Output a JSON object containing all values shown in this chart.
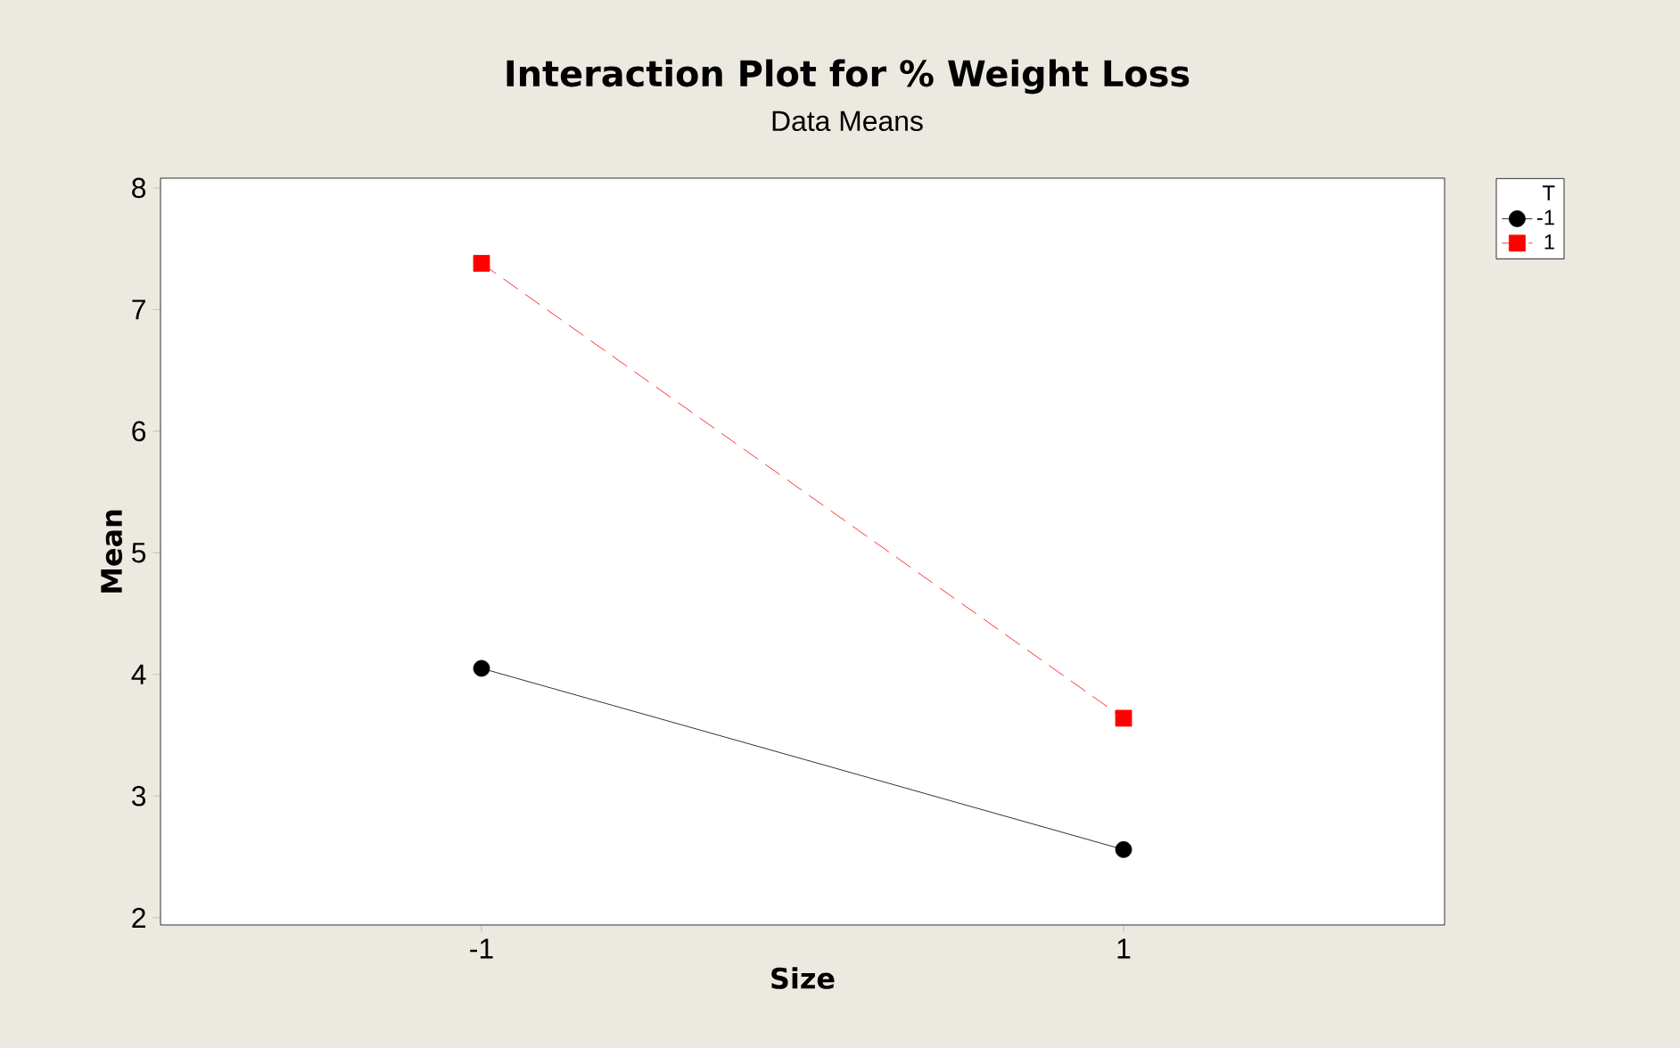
{
  "chart_data": {
    "type": "line",
    "title": "Interaction Plot for % Weight Loss",
    "subtitle": "Data Means",
    "xlabel": "Size",
    "ylabel": "Mean",
    "legend_title": "T",
    "categories": [
      "-1",
      "1"
    ],
    "series": [
      {
        "name": "-1",
        "color": "#000000",
        "values": [
          4.05,
          2.56
        ],
        "marker": "circle",
        "line_style": "solid"
      },
      {
        "name": "1",
        "color": "#ff0000",
        "values": [
          7.38,
          3.64
        ],
        "marker": "square",
        "line_style": "dashed"
      }
    ],
    "ylim": [
      1.94,
      8.08
    ],
    "yticks": [
      2,
      3,
      4,
      5,
      6,
      7,
      8
    ],
    "grid": false,
    "legend": "top right"
  }
}
